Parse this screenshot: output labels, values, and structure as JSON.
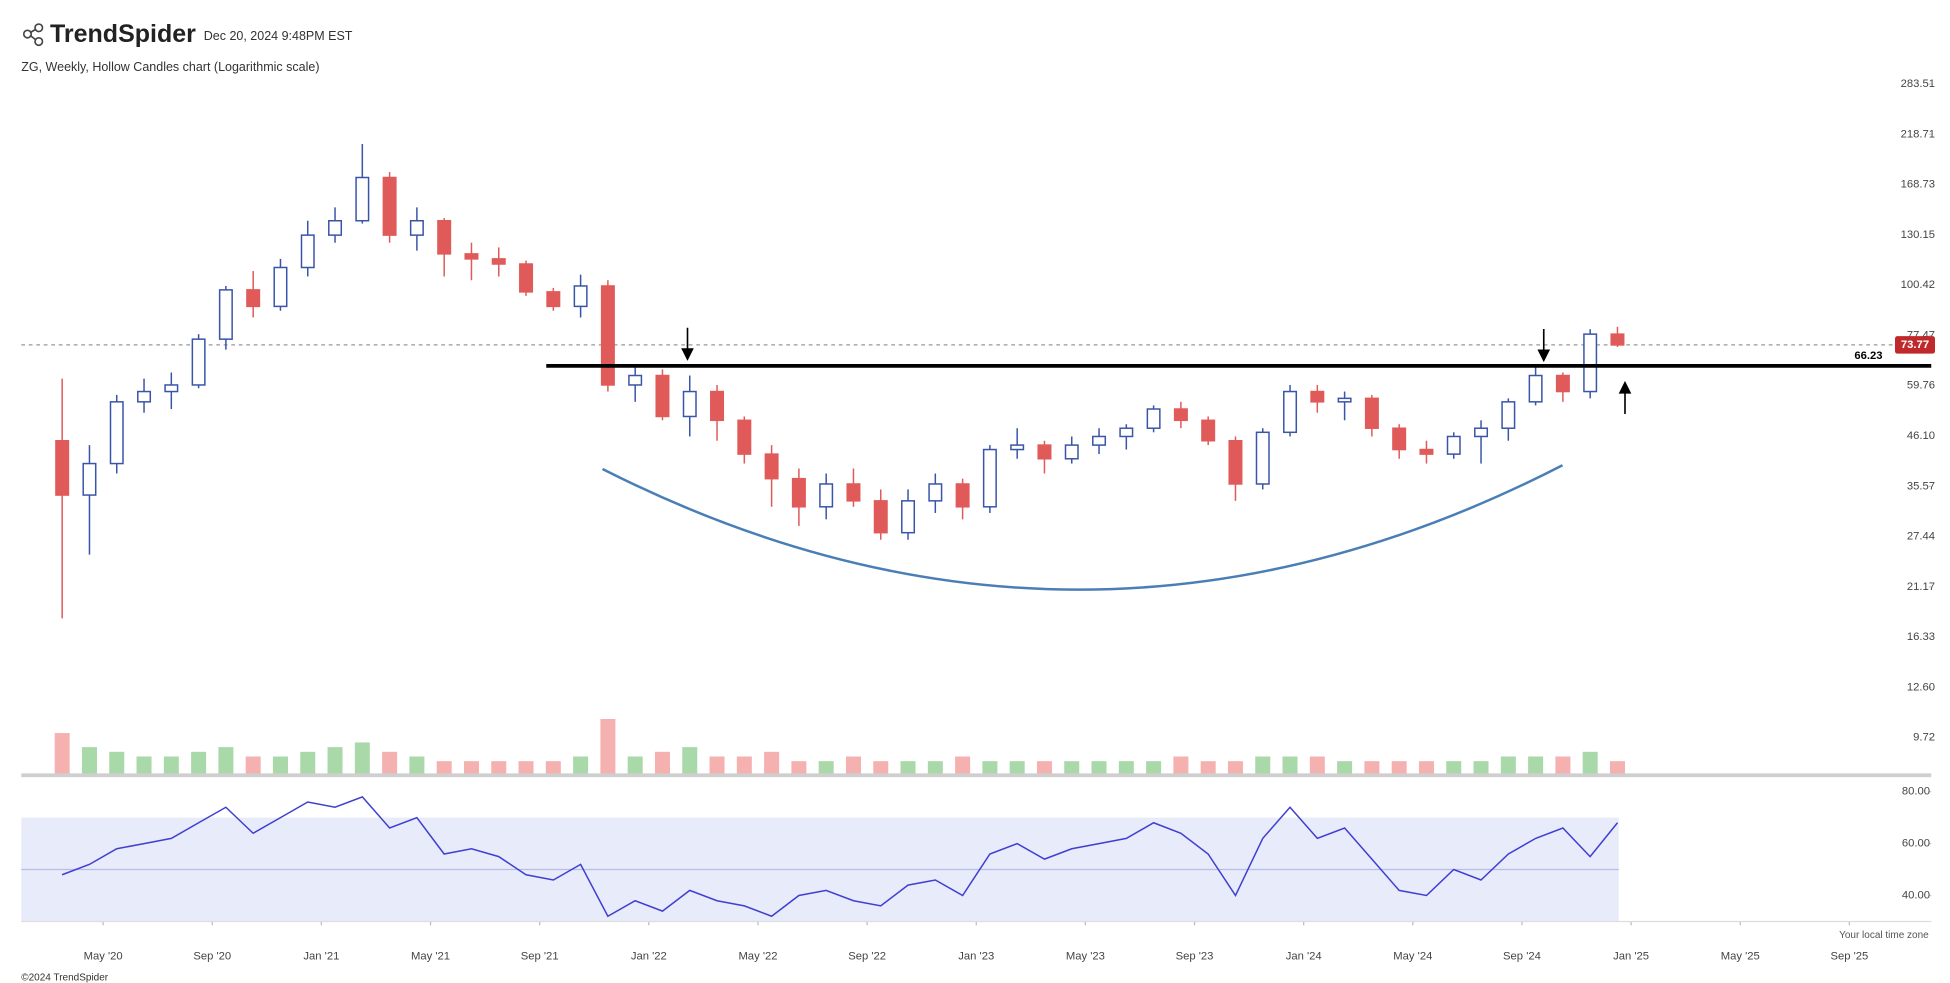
{
  "header": {
    "logo": "TrendSpider",
    "timestamp": "Dec 20, 2024 9:48PM EST"
  },
  "chart_data": {
    "type": "candlestick",
    "title": "ZG, Weekly, Hollow Candles chart (Logarithmic scale)",
    "log_scale": true,
    "x": [
      "2020-03",
      "2020-04",
      "2020-05",
      "2020-06",
      "2020-07",
      "2020-08",
      "2020-09",
      "2020-10",
      "2020-11",
      "2020-12",
      "2021-01",
      "2021-02",
      "2021-03",
      "2021-04",
      "2021-05",
      "2021-06",
      "2021-07",
      "2021-08",
      "2021-09",
      "2021-10",
      "2021-11",
      "2021-12",
      "2022-01",
      "2022-02",
      "2022-03",
      "2022-04",
      "2022-05",
      "2022-06",
      "2022-07",
      "2022-08",
      "2022-09",
      "2022-10",
      "2022-11",
      "2022-12",
      "2023-01",
      "2023-02",
      "2023-03",
      "2023-04",
      "2023-05",
      "2023-06",
      "2023-07",
      "2023-08",
      "2023-09",
      "2023-10",
      "2023-11",
      "2023-12",
      "2024-01",
      "2024-02",
      "2024-03",
      "2024-04",
      "2024-05",
      "2024-06",
      "2024-07",
      "2024-08",
      "2024-09",
      "2024-10",
      "2024-11",
      "2024-12"
    ],
    "open": [
      45,
      34,
      40,
      55,
      58,
      60,
      76,
      98,
      90,
      110,
      130,
      140,
      175,
      130,
      140,
      118,
      115,
      112,
      97,
      90,
      100,
      60,
      63,
      51,
      58,
      50,
      42,
      37,
      32,
      36,
      33,
      28,
      33,
      36,
      32,
      43,
      44,
      41,
      44,
      46,
      48,
      53,
      50,
      45,
      36,
      47,
      58,
      55,
      56,
      48,
      43,
      42,
      46,
      48,
      55,
      63,
      58,
      78
    ],
    "high": [
      62,
      44,
      57,
      62,
      64,
      78,
      100,
      108,
      115,
      140,
      150,
      208,
      180,
      150,
      142,
      125,
      122,
      114,
      99,
      106,
      103,
      66,
      65,
      63,
      60,
      51,
      44,
      39,
      38,
      39,
      35,
      35,
      38,
      37,
      44,
      48,
      45,
      46,
      48,
      49,
      54,
      55,
      51,
      46,
      48,
      60,
      60,
      58,
      57,
      49,
      45,
      47,
      50,
      56,
      66,
      64,
      80,
      81
    ],
    "low": [
      18,
      25,
      38,
      52,
      53,
      59,
      72,
      85,
      88,
      105,
      125,
      138,
      125,
      120,
      105,
      103,
      105,
      95,
      88,
      85,
      58,
      55,
      50,
      46,
      45,
      40,
      32,
      29,
      30,
      32,
      27,
      27,
      31,
      30,
      31,
      41,
      38,
      40,
      42,
      43,
      47,
      48,
      44,
      33,
      35,
      46,
      52,
      50,
      46,
      41,
      40,
      41,
      40,
      45,
      54,
      55,
      56,
      73
    ],
    "close": [
      34,
      40,
      55,
      58,
      60,
      76,
      98,
      90,
      110,
      130,
      140,
      175,
      130,
      140,
      118,
      115,
      112,
      97,
      90,
      100,
      60,
      63,
      51,
      58,
      50,
      42,
      37,
      32,
      36,
      33,
      28,
      33,
      36,
      32,
      43,
      44,
      41,
      44,
      46,
      48,
      53,
      50,
      45,
      36,
      47,
      58,
      55,
      56,
      48,
      43,
      42,
      46,
      48,
      55,
      63,
      58,
      78,
      73.77
    ],
    "volume": [
      9,
      6,
      5,
      4,
      4,
      5,
      6,
      4,
      4,
      5,
      6,
      7,
      5,
      4,
      3,
      3,
      3,
      3,
      3,
      4,
      12,
      4,
      5,
      6,
      4,
      4,
      5,
      3,
      3,
      4,
      3,
      3,
      3,
      4,
      3,
      3,
      3,
      3,
      3,
      3,
      3,
      4,
      3,
      3,
      4,
      4,
      4,
      3,
      3,
      3,
      3,
      3,
      3,
      4,
      4,
      4,
      5,
      3
    ],
    "up_color": "#3a55a8",
    "down_color": "#e15a5a",
    "up_volume_color": "#a9d8a9",
    "down_volume_color": "#f5b0b0",
    "ylim": [
      8.01,
      296.6
    ],
    "yticks": [
      283.51,
      218.71,
      168.73,
      130.15,
      100.42,
      77.47,
      59.76,
      {
        "value": 46.1,
        "label": "46.10"
      },
      35.57,
      27.44,
      21.17,
      16.33,
      {
        "value": 12.6,
        "label": "12.60"
      },
      9.72
    ],
    "xlim": [
      "2020-02",
      "2025-12"
    ],
    "xticks": [
      {
        "value": "2020-05",
        "label": "May '20"
      },
      {
        "value": "2020-09",
        "label": "Sep '20"
      },
      {
        "value": "2021-01",
        "label": "Jan '21"
      },
      {
        "value": "2021-05",
        "label": "May '21"
      },
      {
        "value": "2021-09",
        "label": "Sep '21"
      },
      {
        "value": "2022-01",
        "label": "Jan '22"
      },
      {
        "value": "2022-05",
        "label": "May '22"
      },
      {
        "value": "2022-09",
        "label": "Sep '22"
      },
      {
        "value": "2023-01",
        "label": "Jan '23"
      },
      {
        "value": "2023-05",
        "label": "May '23"
      },
      {
        "value": "2023-09",
        "label": "Sep '23"
      },
      {
        "value": "2024-01",
        "label": "Jan '24"
      },
      {
        "value": "2024-05",
        "label": "May '24"
      },
      {
        "value": "2024-09",
        "label": "Sep '24"
      },
      {
        "value": "2025-01",
        "label": "Jan '25"
      },
      {
        "value": "2025-05",
        "label": "May '25"
      },
      {
        "value": "2025-09",
        "label": "Sep '25"
      }
    ],
    "support_level": 66.23,
    "last_price": 73.77,
    "rsi": {
      "values": [
        48,
        52,
        58,
        60,
        62,
        68,
        74,
        64,
        70,
        76,
        74,
        78,
        66,
        70,
        56,
        58,
        55,
        48,
        46,
        52,
        32,
        38,
        34,
        42,
        38,
        36,
        32,
        40,
        42,
        38,
        36,
        44,
        46,
        40,
        56,
        60,
        54,
        58,
        60,
        62,
        68,
        64,
        56,
        40,
        62,
        74,
        62,
        66,
        54,
        42,
        40,
        50,
        46,
        56,
        62,
        66,
        55,
        68
      ],
      "color": "#3f3fd0",
      "ylim": [
        30,
        81.5
      ],
      "yticks": [
        {
          "value": 80,
          "label": "80.00"
        },
        {
          "value": 60,
          "label": "60.00"
        },
        {
          "value": 40,
          "label": "40.00"
        }
      ],
      "band": [
        30,
        70
      ],
      "midline": 50
    }
  },
  "footer": {
    "timezone_note": "Your local time zone",
    "copyright": "©2024 TrendSpider"
  }
}
